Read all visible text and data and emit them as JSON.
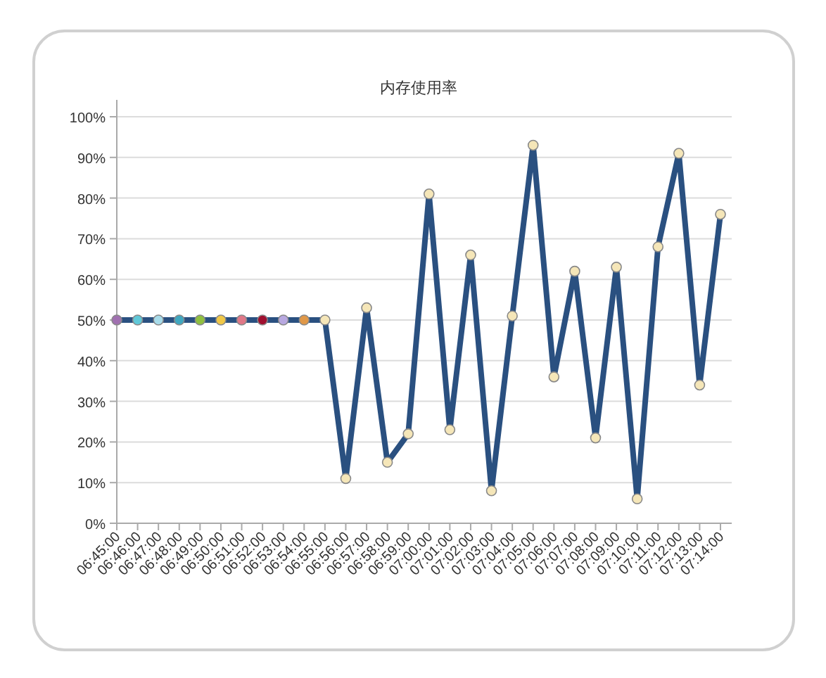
{
  "chart_data": {
    "type": "line",
    "title": "内存使用率",
    "categories": [
      "06:45:00",
      "06:46:00",
      "06:47:00",
      "06:48:00",
      "06:49:00",
      "06:50:00",
      "06:51:00",
      "06:52:00",
      "06:53:00",
      "06:54:00",
      "06:55:00",
      "06:56:00",
      "06:57:00",
      "06:58:00",
      "06:59:00",
      "07:00:00",
      "07:01:00",
      "07:02:00",
      "07:03:00",
      "07:04:00",
      "07:05:00",
      "07:06:00",
      "07:07:00",
      "07:08:00",
      "07:09:00",
      "07:10:00",
      "07:11:00",
      "07:12:00",
      "07:13:00",
      "07:14:00"
    ],
    "series": [
      {
        "color": "#2a5080",
        "values": [
          50,
          50,
          50,
          50,
          50,
          50,
          50,
          50,
          50,
          50,
          50,
          11,
          53,
          15,
          22,
          81,
          23,
          66,
          8,
          51,
          93,
          36,
          62,
          21,
          63,
          6,
          68,
          91,
          34,
          76
        ],
        "colors": [
          "#a070b0",
          "#60c8d8",
          "#a8dcea",
          "#40a8c0",
          "#90c040",
          "#f0c848",
          "#e07888",
          "#a01030",
          "#b8a8e0",
          "#e09848",
          "#f5e6b8",
          "#f5e6b8",
          "#f5e6b8",
          "#f5e6b8",
          "#f5e6b8",
          "#f5e6b8",
          "#f5e6b8",
          "#f5e6b8",
          "#f5e6b8",
          "#f5e6b8",
          "#f5e6b8",
          "#f5e6b8",
          "#f5e6b8",
          "#f5e6b8",
          "#f5e6b8",
          "#f5e6b8",
          "#f5e6b8",
          "#f5e6b8",
          "#f5e6b8",
          "#f5e6b8"
        ]
      }
    ],
    "ylim": [
      0,
      100
    ],
    "yticks": [
      {
        "value": 0,
        "label": "0%"
      },
      {
        "value": 10,
        "label": "10%"
      },
      {
        "value": 20,
        "label": "20%"
      },
      {
        "value": 30,
        "label": "30%"
      },
      {
        "value": 40,
        "label": "40%"
      },
      {
        "value": 50,
        "label": "50%"
      },
      {
        "value": 60,
        "label": "60%"
      },
      {
        "value": 70,
        "label": "70%"
      },
      {
        "value": 80,
        "label": "80%"
      },
      {
        "value": 90,
        "label": "90%"
      },
      {
        "value": 100,
        "label": "100%"
      }
    ],
    "grid": "y",
    "marker": "circle",
    "line_style": "solid"
  }
}
